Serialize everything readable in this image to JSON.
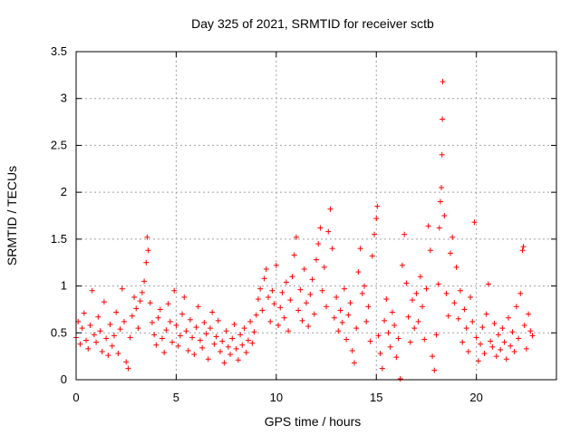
{
  "chart_data": {
    "type": "scatter",
    "title": "Day 325 of 2021, SRMTID for receiver sctb",
    "xlabel": "GPS time / hours",
    "ylabel": "SRMTID / TECUs",
    "xlim": [
      0,
      24
    ],
    "ylim": [
      0,
      3.5
    ],
    "xticks": [
      0,
      5,
      10,
      15,
      20
    ],
    "yticks": [
      0,
      0.5,
      1,
      1.5,
      2,
      2.5,
      3,
      3.5
    ],
    "xtick_labels": [
      "0",
      "5",
      "10",
      "15",
      "20"
    ],
    "ytick_labels": [
      "0",
      "0.5",
      "1",
      "1.5",
      "2",
      "2.5",
      "3",
      "3.5"
    ],
    "grid": true,
    "marker": "+",
    "color": "#ff0000",
    "series": [
      {
        "name": "sctb",
        "points": [
          [
            0.0,
            0.45
          ],
          [
            0.1,
            0.62
          ],
          [
            0.2,
            0.38
          ],
          [
            0.3,
            0.55
          ],
          [
            0.4,
            0.71
          ],
          [
            0.5,
            0.42
          ],
          [
            0.6,
            0.33
          ],
          [
            0.7,
            0.58
          ],
          [
            0.8,
            0.95
          ],
          [
            0.9,
            0.48
          ],
          [
            1.0,
            0.4
          ],
          [
            1.1,
            0.67
          ],
          [
            1.2,
            0.52
          ],
          [
            1.3,
            0.3
          ],
          [
            1.4,
            0.83
          ],
          [
            1.5,
            0.44
          ],
          [
            1.6,
            0.26
          ],
          [
            1.7,
            0.59
          ],
          [
            1.8,
            0.36
          ],
          [
            1.9,
            0.47
          ],
          [
            2.0,
            0.72
          ],
          [
            2.1,
            0.28
          ],
          [
            2.2,
            0.54
          ],
          [
            2.3,
            0.97
          ],
          [
            2.4,
            0.62
          ],
          [
            2.5,
            0.19
          ],
          [
            2.6,
            0.12
          ],
          [
            2.7,
            0.45
          ],
          [
            2.8,
            0.68
          ],
          [
            2.9,
            0.88
          ],
          [
            3.0,
            0.76
          ],
          [
            3.1,
            0.55
          ],
          [
            3.2,
            0.84
          ],
          [
            3.3,
            0.93
          ],
          [
            3.4,
            1.05
          ],
          [
            3.5,
            1.25
          ],
          [
            3.55,
            1.52
          ],
          [
            3.6,
            1.38
          ],
          [
            3.7,
            0.82
          ],
          [
            3.8,
            0.61
          ],
          [
            3.9,
            0.48
          ],
          [
            4.0,
            0.37
          ],
          [
            4.1,
            0.66
          ],
          [
            4.2,
            0.75
          ],
          [
            4.3,
            0.44
          ],
          [
            4.4,
            0.29
          ],
          [
            4.5,
            0.53
          ],
          [
            4.6,
            0.81
          ],
          [
            4.7,
            0.62
          ],
          [
            4.8,
            0.4
          ],
          [
            4.9,
            0.95
          ],
          [
            5.0,
            0.58
          ],
          [
            5.1,
            0.36
          ],
          [
            5.2,
            0.47
          ],
          [
            5.3,
            0.7
          ],
          [
            5.4,
            0.88
          ],
          [
            5.5,
            0.52
          ],
          [
            5.6,
            0.31
          ],
          [
            5.7,
            0.64
          ],
          [
            5.8,
            0.45
          ],
          [
            5.9,
            0.27
          ],
          [
            6.0,
            0.56
          ],
          [
            6.1,
            0.78
          ],
          [
            6.2,
            0.42
          ],
          [
            6.3,
            0.34
          ],
          [
            6.4,
            0.61
          ],
          [
            6.5,
            0.49
          ],
          [
            6.6,
            0.22
          ],
          [
            6.7,
            0.55
          ],
          [
            6.8,
            0.72
          ],
          [
            6.9,
            0.38
          ],
          [
            7.0,
            0.46
          ],
          [
            7.1,
            0.63
          ],
          [
            7.2,
            0.3
          ],
          [
            7.3,
            0.41
          ],
          [
            7.4,
            0.18
          ],
          [
            7.5,
            0.52
          ],
          [
            7.6,
            0.35
          ],
          [
            7.7,
            0.27
          ],
          [
            7.8,
            0.44
          ],
          [
            7.9,
            0.59
          ],
          [
            8.0,
            0.33
          ],
          [
            8.1,
            0.21
          ],
          [
            8.2,
            0.48
          ],
          [
            8.3,
            0.37
          ],
          [
            8.4,
            0.55
          ],
          [
            8.5,
            0.29
          ],
          [
            8.6,
            0.42
          ],
          [
            8.7,
            0.62
          ],
          [
            8.8,
            0.39
          ],
          [
            8.9,
            0.51
          ],
          [
            9.0,
            0.69
          ],
          [
            9.1,
            0.86
          ],
          [
            9.2,
            0.97
          ],
          [
            9.3,
            0.74
          ],
          [
            9.4,
            1.08
          ],
          [
            9.5,
            1.18
          ],
          [
            9.6,
            0.88
          ],
          [
            9.7,
            0.62
          ],
          [
            9.8,
            0.95
          ],
          [
            9.9,
            0.81
          ],
          [
            10.0,
            1.22
          ],
          [
            10.1,
            0.58
          ],
          [
            10.2,
            0.77
          ],
          [
            10.3,
            0.93
          ],
          [
            10.4,
            0.66
          ],
          [
            10.5,
            1.04
          ],
          [
            10.6,
            0.52
          ],
          [
            10.7,
            0.85
          ],
          [
            10.8,
            1.1
          ],
          [
            10.9,
            1.33
          ],
          [
            11.0,
            1.52
          ],
          [
            11.1,
            0.74
          ],
          [
            11.2,
            0.96
          ],
          [
            11.3,
            0.63
          ],
          [
            11.4,
            1.18
          ],
          [
            11.5,
            0.82
          ],
          [
            11.6,
            0.57
          ],
          [
            11.7,
            0.91
          ],
          [
            11.8,
            1.07
          ],
          [
            11.9,
            0.7
          ],
          [
            12.0,
            1.28
          ],
          [
            12.1,
            1.45
          ],
          [
            12.2,
            1.62
          ],
          [
            12.3,
            0.95
          ],
          [
            12.4,
            1.2
          ],
          [
            12.5,
            0.78
          ],
          [
            12.6,
            1.58
          ],
          [
            12.7,
            1.82
          ],
          [
            12.8,
            1.4
          ],
          [
            12.9,
            0.66
          ],
          [
            13.0,
            0.88
          ],
          [
            13.1,
            0.52
          ],
          [
            13.2,
            0.74
          ],
          [
            13.3,
            0.61
          ],
          [
            13.4,
            0.97
          ],
          [
            13.5,
            0.43
          ],
          [
            13.6,
            0.69
          ],
          [
            13.7,
            0.82
          ],
          [
            13.8,
            0.31
          ],
          [
            13.9,
            0.18
          ],
          [
            14.0,
            0.55
          ],
          [
            14.1,
            1.15
          ],
          [
            14.2,
            1.4
          ],
          [
            14.3,
            0.92
          ],
          [
            14.4,
            1.0
          ],
          [
            14.5,
            0.62
          ],
          [
            14.6,
            0.78
          ],
          [
            14.7,
            0.41
          ],
          [
            14.8,
            1.32
          ],
          [
            14.9,
            1.55
          ],
          [
            15.0,
            1.72
          ],
          [
            15.05,
            1.85
          ],
          [
            15.1,
            0.47
          ],
          [
            15.2,
            0.28
          ],
          [
            15.3,
            0.12
          ],
          [
            15.4,
            0.63
          ],
          [
            15.5,
            0.86
          ],
          [
            15.6,
            0.5
          ],
          [
            15.7,
            0.35
          ],
          [
            15.8,
            0.72
          ],
          [
            15.9,
            0.58
          ],
          [
            16.0,
            0.24
          ],
          [
            16.1,
            0.44
          ],
          [
            16.2,
            0.01
          ],
          [
            16.3,
            1.22
          ],
          [
            16.4,
            1.55
          ],
          [
            16.5,
            1.03
          ],
          [
            16.6,
            0.67
          ],
          [
            16.7,
            0.4
          ],
          [
            16.8,
            0.85
          ],
          [
            16.9,
            0.55
          ],
          [
            17.0,
            0.92
          ],
          [
            17.1,
            0.62
          ],
          [
            17.2,
            1.1
          ],
          [
            17.3,
            0.78
          ],
          [
            17.4,
            0.43
          ],
          [
            17.5,
            0.97
          ],
          [
            17.6,
            1.64
          ],
          [
            17.7,
            1.38
          ],
          [
            17.8,
            0.25
          ],
          [
            17.9,
            0.1
          ],
          [
            18.0,
            0.48
          ],
          [
            18.1,
            1.02
          ],
          [
            18.15,
            1.62
          ],
          [
            18.2,
            1.9
          ],
          [
            18.25,
            2.05
          ],
          [
            18.28,
            2.4
          ],
          [
            18.3,
            2.78
          ],
          [
            18.32,
            3.18
          ],
          [
            18.4,
            1.75
          ],
          [
            18.5,
            0.92
          ],
          [
            18.6,
            0.68
          ],
          [
            18.7,
            1.35
          ],
          [
            18.8,
            1.52
          ],
          [
            18.9,
            0.82
          ],
          [
            19.0,
            1.2
          ],
          [
            19.1,
            0.65
          ],
          [
            19.2,
            0.95
          ],
          [
            19.3,
            0.4
          ],
          [
            19.4,
            0.75
          ],
          [
            19.5,
            0.55
          ],
          [
            19.6,
            0.3
          ],
          [
            19.7,
            0.88
          ],
          [
            19.8,
            0.62
          ],
          [
            19.9,
            1.68
          ],
          [
            20.0,
            0.45
          ],
          [
            20.1,
            0.2
          ],
          [
            20.2,
            0.38
          ],
          [
            20.3,
            0.56
          ],
          [
            20.4,
            0.28
          ],
          [
            20.5,
            0.7
          ],
          [
            20.6,
            1.02
          ],
          [
            20.7,
            0.41
          ],
          [
            20.8,
            0.35
          ],
          [
            20.9,
            0.6
          ],
          [
            21.0,
            0.25
          ],
          [
            21.1,
            0.48
          ],
          [
            21.2,
            0.32
          ],
          [
            21.3,
            0.55
          ],
          [
            21.4,
            0.4
          ],
          [
            21.5,
            0.22
          ],
          [
            21.6,
            0.66
          ],
          [
            21.7,
            0.36
          ],
          [
            21.8,
            0.51
          ],
          [
            21.9,
            0.3
          ],
          [
            22.0,
            0.78
          ],
          [
            22.1,
            0.44
          ],
          [
            22.2,
            0.92
          ],
          [
            22.3,
            1.38
          ],
          [
            22.35,
            1.42
          ],
          [
            22.4,
            0.58
          ],
          [
            22.5,
            0.33
          ],
          [
            22.6,
            0.7
          ],
          [
            22.7,
            0.52
          ],
          [
            22.8,
            0.47
          ]
        ]
      }
    ]
  }
}
